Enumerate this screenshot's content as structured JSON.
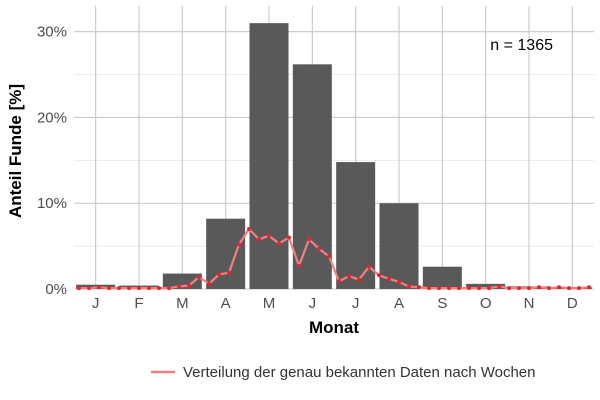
{
  "chart_data": {
    "type": "bar",
    "xlabel": "Monat",
    "ylabel": "Anteil Funde [%]",
    "annotation": "n = 1365",
    "categories": [
      "J",
      "F",
      "M",
      "A",
      "M",
      "J",
      "J",
      "A",
      "S",
      "O",
      "N",
      "D"
    ],
    "y_ticks": [
      "0%",
      "10%",
      "20%",
      "30%"
    ],
    "ylim": [
      0,
      0.33
    ],
    "grid": true,
    "legend_position": "bottom-right",
    "bar_color": "#595959",
    "line_color": "#f08080",
    "point_color": "#e8242f",
    "series": [
      {
        "values": [
          0.005,
          0.004,
          0.018,
          0.082,
          0.31,
          0.262,
          0.148,
          0.1,
          0.026,
          0.006,
          0.003,
          0.002
        ]
      },
      {
        "name": "Verteilung der genau bekannten Daten nach Wochen",
        "x": [
          1,
          2,
          3,
          4,
          5,
          6,
          7,
          8,
          9,
          10,
          11,
          12,
          13,
          14,
          15,
          16,
          17,
          18,
          19,
          20,
          21,
          22,
          23,
          24,
          25,
          26,
          27,
          28,
          29,
          30,
          31,
          32,
          33,
          34,
          35,
          36,
          37,
          38,
          39,
          40,
          41,
          42,
          43,
          44,
          45,
          46,
          47,
          48,
          49,
          50,
          51,
          52
        ],
        "values": [
          0.001,
          0.001,
          0.002,
          0.001,
          0.001,
          0.001,
          0.001,
          0.001,
          0.001,
          0.001,
          0.003,
          0.004,
          0.014,
          0.006,
          0.017,
          0.019,
          0.052,
          0.07,
          0.058,
          0.062,
          0.053,
          0.06,
          0.027,
          0.058,
          0.047,
          0.038,
          0.009,
          0.015,
          0.011,
          0.026,
          0.016,
          0.012,
          0.008,
          0.003,
          0.002,
          0.001,
          0.001,
          0.001,
          0.001,
          0.001,
          0.001,
          0.001,
          0.003,
          0.001,
          0.001,
          0.001,
          0.002,
          0.001,
          0.002,
          0.001,
          0.001,
          0.002
        ]
      }
    ]
  }
}
